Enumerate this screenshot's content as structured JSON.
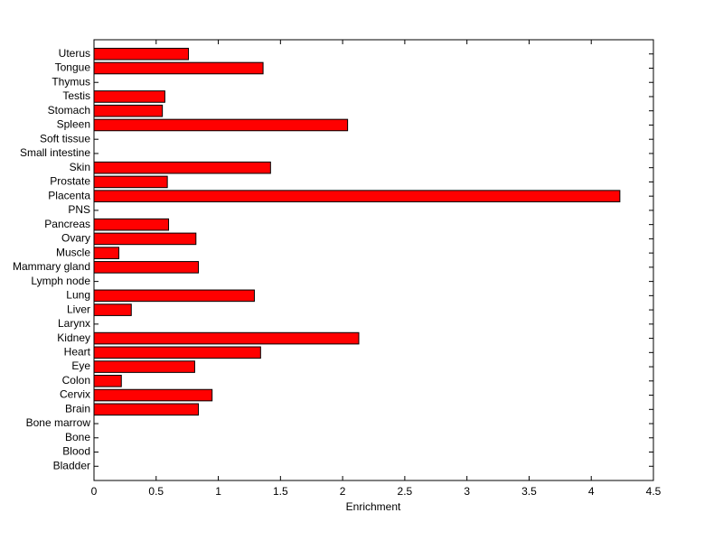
{
  "chart_data": {
    "type": "hbar",
    "x_label": "Enrichment",
    "categories": [
      "Bladder",
      "Blood",
      "Bone",
      "Bone marrow",
      "Brain",
      "Cervix",
      "Colon",
      "Eye",
      "Heart",
      "Kidney",
      "Larynx",
      "Liver",
      "Lung",
      "Lymph node",
      "Mammary gland",
      "Muscle",
      "Ovary",
      "Pancreas",
      "PNS",
      "Placenta",
      "Prostate",
      "Skin",
      "Small intestine",
      "Soft tissue",
      "Spleen",
      "Stomach",
      "Testis",
      "Thymus",
      "Tongue",
      "Uterus"
    ],
    "values": [
      0,
      0,
      0,
      0,
      0.84,
      0.95,
      0.22,
      0.81,
      1.34,
      2.13,
      0,
      0.3,
      1.29,
      0,
      0.84,
      0.2,
      0.82,
      0.6,
      0,
      4.23,
      0.59,
      1.42,
      0,
      0,
      2.04,
      0.55,
      0.57,
      0,
      1.36,
      0.76
    ],
    "color": "#ff0000",
    "xlim": [
      0,
      4.5
    ],
    "xticks": [
      0,
      0.5,
      1,
      1.5,
      2,
      2.5,
      3,
      3.5,
      4,
      4.5
    ]
  }
}
